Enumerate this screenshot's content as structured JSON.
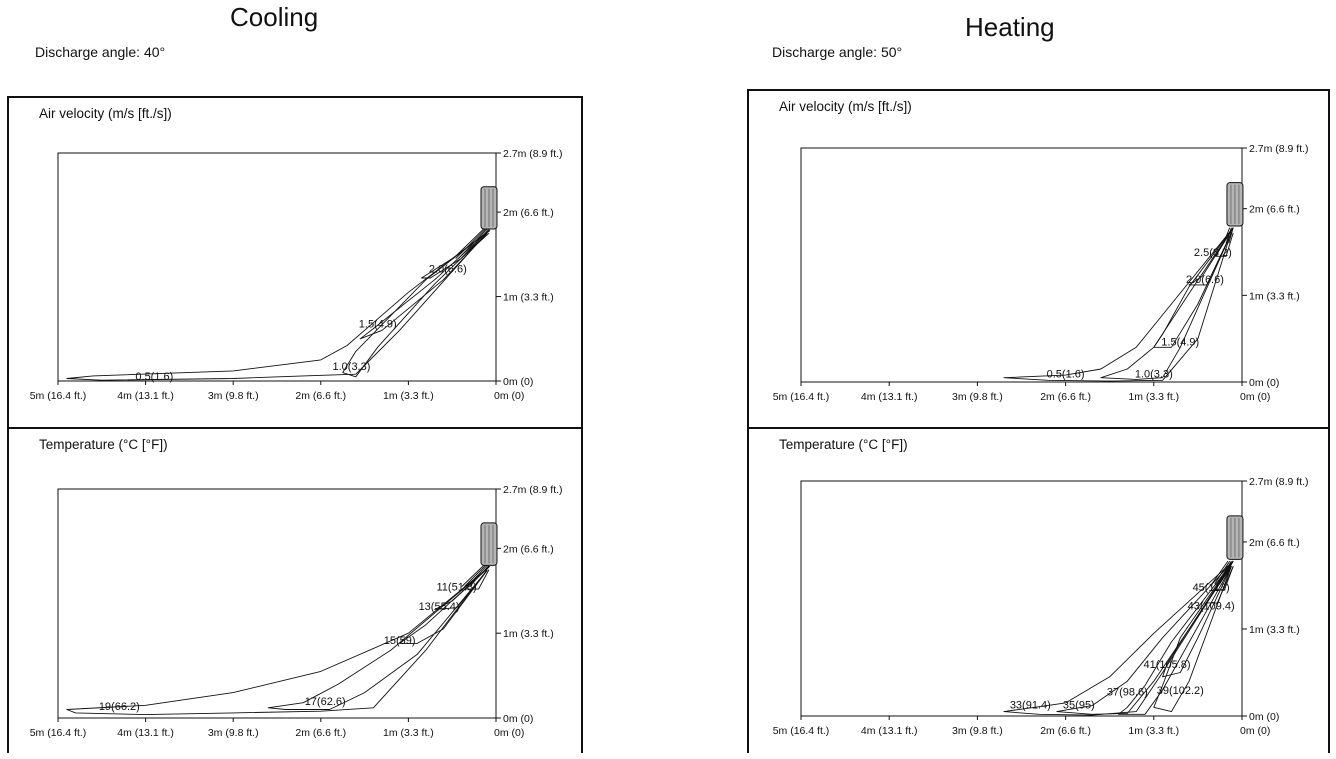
{
  "cooling": {
    "title": "Cooling",
    "discharge_angle": "Discharge angle: 40°",
    "velocity": {
      "title": "Air velocity (m/s [ft./s])",
      "contours": [
        "2.0(6.6)",
        "1.5(4.9)",
        "1.0(3.3)",
        "0.5(1.6)"
      ]
    },
    "temperature": {
      "title": "Temperature (°C [°F])",
      "contours": [
        "11(51.8)",
        "13(55.4)",
        "15(59)",
        "17(62.6)",
        "19(66.2)"
      ]
    }
  },
  "heating": {
    "title": "Heating",
    "discharge_angle": "Discharge angle: 50°",
    "velocity": {
      "title": "Air velocity (m/s [ft./s])",
      "contours": [
        "2.5(8.2)",
        "2.0(6.6)",
        "1.5(4.9)",
        "1.0(3.3)",
        "0.5(1.6)"
      ]
    },
    "temperature": {
      "title": "Temperature (°C [°F])",
      "contours": [
        "45(113)",
        "43(109.4)",
        "41(105.8)",
        "39(102.2)",
        "37(98.6)",
        "35(95)",
        "33(91.4)"
      ]
    }
  },
  "axes": {
    "x_ticks": [
      "5m (16.4 ft.)",
      "4m (13.1 ft.)",
      "3m (9.8 ft.)",
      "2m (6.6 ft.)",
      "1m (3.3 ft.)",
      "0m (0)"
    ],
    "y_ticks": [
      "2.7m (8.9 ft.)",
      "2m (6.6 ft.)",
      "1m (3.3 ft.)",
      "0m (0)"
    ]
  }
}
